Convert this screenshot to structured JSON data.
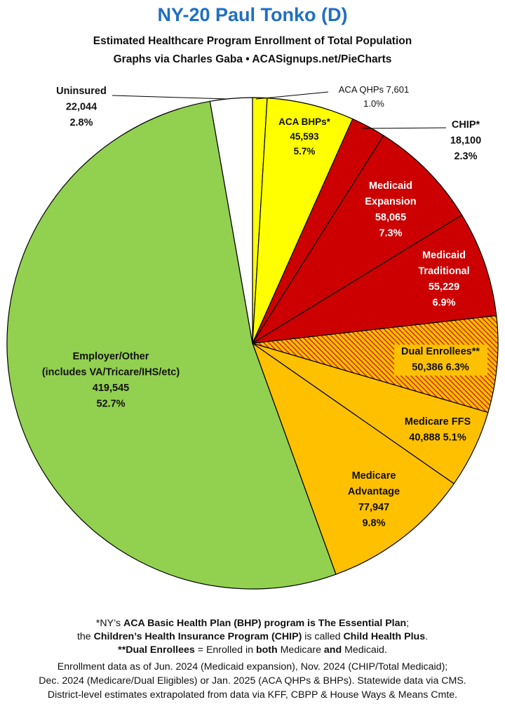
{
  "chart_data": {
    "type": "pie",
    "title": "NY-20 Paul Tonko (D)",
    "subtitle_lines": [
      "Estimated Healthcare Program Enrollment of Total Population",
      "Graphs via Charles Gaba  •  ACASignups.net/PieCharts"
    ],
    "start": "12 o'clock",
    "direction": "clockwise",
    "slices": [
      {
        "label": "ACA QHPs",
        "value": 7601,
        "value_text": "7,601",
        "percent": "1.0%",
        "color": "#ffff00"
      },
      {
        "label": "ACA BHPs*",
        "value": 45593,
        "value_text": "45,593",
        "percent": "5.7%",
        "color": "#ffff00"
      },
      {
        "label": "CHIP*",
        "value": 18100,
        "value_text": "18,100",
        "percent": "2.3%",
        "color": "#cc0000"
      },
      {
        "label": "Medicaid Expansion",
        "value": 58065,
        "value_text": "58,065",
        "percent": "7.3%",
        "color": "#cc0000"
      },
      {
        "label": "Medicaid Traditional",
        "value": 55229,
        "value_text": "55,229",
        "percent": "6.9%",
        "color": "#cc0000"
      },
      {
        "label": "Dual Enrollees**",
        "value": 50386,
        "value_text": "50,386",
        "percent": "6.3%",
        "color": "#ffc000",
        "pattern": "hatched"
      },
      {
        "label": "Medicare FFS",
        "value": 40888,
        "value_text": "40,888",
        "percent": "5.1%",
        "color": "#ffc000"
      },
      {
        "label": "Medicare Advantage",
        "value": 77947,
        "value_text": "77,947",
        "percent": "9.8%",
        "color": "#ffc000"
      },
      {
        "label": "Employer/Other",
        "sublabel": "(includes VA/Tricare/IHS/etc)",
        "value": 419545,
        "value_text": "419,545",
        "percent": "52.7%",
        "color": "#92d050"
      },
      {
        "label": "Uninsured",
        "value": 22044,
        "value_text": "22,044",
        "percent": "2.8%",
        "color": "#ffffff"
      }
    ]
  },
  "footnotes": {
    "line1_a": "*NY’s ",
    "line1_b": "ACA Basic Health Plan (BHP) program is The Essential Plan",
    "line1_c": ";",
    "line2_a": "the ",
    "line2_b": "Children’s Health Insurance Program (CHIP)",
    "line2_c": " is called ",
    "line2_d": "Child Health Plus",
    "line2_e": ".",
    "line3_a": "**Dual Enrollees",
    "line3_b": " = Enrolled in ",
    "line3_c": "both",
    "line3_d": " Medicare ",
    "line3_e": "and",
    "line3_f": " Medicaid.",
    "source1": "Enrollment data as of Jun. 2024 (Medicaid expansion), Nov. 2024 (CHIP/Total Medicaid);",
    "source2": "Dec. 2024 (Medicare/Dual Eligibles) or Jan. 2025 (ACA QHPs & BHPs). Statewide data via CMS.",
    "source3": "District-level estimates extrapolated from data via KFF, CBPP & House Ways & Means Cmte."
  }
}
